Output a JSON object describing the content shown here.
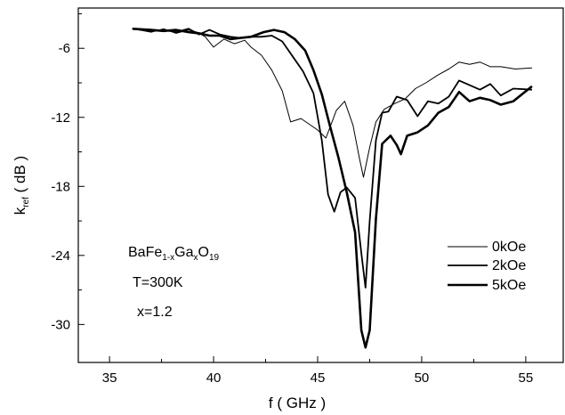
{
  "chart_data": {
    "type": "line",
    "title": "",
    "xlabel": "f ( GHz )",
    "ylabel": {
      "main": "k",
      "sub": "ref",
      "rest": " ( dB )"
    },
    "xlim": [
      33.5,
      56.8
    ],
    "ylim": [
      -33.3,
      -2.5
    ],
    "xticks": [
      35,
      40,
      45,
      50,
      55
    ],
    "yticks": [
      -6,
      -12,
      -18,
      -24,
      -30
    ],
    "grid": false,
    "legend_position": "right",
    "annotation": {
      "formula": [
        {
          "t": "BaFe",
          "sub": false
        },
        {
          "t": "1-x",
          "sub": true
        },
        {
          "t": "Ga",
          "sub": false
        },
        {
          "t": "x",
          "sub": true
        },
        {
          "t": "O",
          "sub": false
        },
        {
          "t": "19",
          "sub": true
        }
      ],
      "temperature": "T=300K",
      "x_value": "x=1.2"
    },
    "series": [
      {
        "name": "0kOe",
        "line_width": 1,
        "points": [
          [
            36.1,
            -4.3
          ],
          [
            37,
            -4.6
          ],
          [
            37.6,
            -4.3
          ],
          [
            38.2,
            -4.7
          ],
          [
            38.8,
            -4.4
          ],
          [
            39.2,
            -4.6
          ],
          [
            39.6,
            -5
          ],
          [
            40,
            -5.9
          ],
          [
            40.5,
            -5.2
          ],
          [
            41,
            -5.6
          ],
          [
            41.5,
            -5.3
          ],
          [
            41.8,
            -5.9
          ],
          [
            42.3,
            -6.6
          ],
          [
            42.8,
            -7.9
          ],
          [
            43.3,
            -9.7
          ],
          [
            43.7,
            -12.4
          ],
          [
            44.2,
            -12.1
          ],
          [
            44.6,
            -12.6
          ],
          [
            45,
            -13.1
          ],
          [
            45.4,
            -13.8
          ],
          [
            45.9,
            -11.4
          ],
          [
            46.3,
            -10.6
          ],
          [
            46.7,
            -12.7
          ],
          [
            47,
            -15.5
          ],
          [
            47.2,
            -17.2
          ],
          [
            47.5,
            -14.6
          ],
          [
            47.8,
            -12.4
          ],
          [
            48.2,
            -11.3
          ],
          [
            48.7,
            -10.8
          ],
          [
            49.2,
            -10.4
          ],
          [
            49.7,
            -9.5
          ],
          [
            50.2,
            -9
          ],
          [
            50.8,
            -8.3
          ],
          [
            51.3,
            -7.8
          ],
          [
            51.8,
            -7.2
          ],
          [
            52.3,
            -7.4
          ],
          [
            52.8,
            -7.2
          ],
          [
            53.3,
            -7.6
          ],
          [
            53.8,
            -7.6
          ],
          [
            54.5,
            -7.8
          ],
          [
            55.3,
            -7.7
          ]
        ]
      },
      {
        "name": "2kOe",
        "line_width": 1.8,
        "points": [
          [
            36.1,
            -4.3
          ],
          [
            37,
            -4.5
          ],
          [
            37.6,
            -4.4
          ],
          [
            38.2,
            -4.6
          ],
          [
            38.8,
            -4.3
          ],
          [
            39.3,
            -4.8
          ],
          [
            39.8,
            -4.4
          ],
          [
            40.3,
            -4.8
          ],
          [
            40.8,
            -5
          ],
          [
            41.3,
            -5.1
          ],
          [
            41.8,
            -5
          ],
          [
            42.3,
            -5
          ],
          [
            42.8,
            -4.9
          ],
          [
            43.3,
            -5.4
          ],
          [
            43.8,
            -6.7
          ],
          [
            44.3,
            -8
          ],
          [
            44.8,
            -9.9
          ],
          [
            45.2,
            -14
          ],
          [
            45.5,
            -18.7
          ],
          [
            45.8,
            -20.2
          ],
          [
            46.1,
            -18.5
          ],
          [
            46.4,
            -18.1
          ],
          [
            46.8,
            -19
          ],
          [
            47.1,
            -23.8
          ],
          [
            47.3,
            -26.8
          ],
          [
            47.5,
            -21
          ],
          [
            47.8,
            -14
          ],
          [
            48.1,
            -11.6
          ],
          [
            48.4,
            -11.5
          ],
          [
            48.8,
            -10.2
          ],
          [
            49.3,
            -10.5
          ],
          [
            49.8,
            -11.9
          ],
          [
            50.3,
            -10.6
          ],
          [
            50.8,
            -10.8
          ],
          [
            51.3,
            -10.2
          ],
          [
            51.8,
            -8.8
          ],
          [
            52.3,
            -9.2
          ],
          [
            52.8,
            -9.6
          ],
          [
            53.3,
            -9.1
          ],
          [
            53.8,
            -10.1
          ],
          [
            54.4,
            -9.5
          ],
          [
            55.3,
            -9.6
          ]
        ]
      },
      {
        "name": "5kOe",
        "line_width": 2.6,
        "points": [
          [
            36.1,
            -4.3
          ],
          [
            37,
            -4.4
          ],
          [
            37.6,
            -4.5
          ],
          [
            38.2,
            -4.4
          ],
          [
            38.8,
            -4.6
          ],
          [
            39.3,
            -4.7
          ],
          [
            39.8,
            -4.9
          ],
          [
            40.3,
            -4.9
          ],
          [
            40.8,
            -5.2
          ],
          [
            41.3,
            -5.1
          ],
          [
            41.8,
            -5
          ],
          [
            42.4,
            -4.6
          ],
          [
            42.9,
            -4.4
          ],
          [
            43.4,
            -4.6
          ],
          [
            43.9,
            -5.2
          ],
          [
            44.4,
            -6.2
          ],
          [
            44.8,
            -7.9
          ],
          [
            45.2,
            -10
          ],
          [
            45.6,
            -12.8
          ],
          [
            46,
            -15.5
          ],
          [
            46.4,
            -18.5
          ],
          [
            46.8,
            -22
          ],
          [
            47.1,
            -30.5
          ],
          [
            47.3,
            -32
          ],
          [
            47.5,
            -30.5
          ],
          [
            47.8,
            -20.8
          ],
          [
            48.1,
            -14.3
          ],
          [
            48.5,
            -13.6
          ],
          [
            48.8,
            -14.4
          ],
          [
            49,
            -15.2
          ],
          [
            49.3,
            -13.6
          ],
          [
            49.8,
            -13.3
          ],
          [
            50.3,
            -12.7
          ],
          [
            50.8,
            -11.6
          ],
          [
            51.3,
            -11.1
          ],
          [
            51.8,
            -9.8
          ],
          [
            52.3,
            -10.6
          ],
          [
            52.8,
            -10.3
          ],
          [
            53.3,
            -10.5
          ],
          [
            53.8,
            -10.9
          ],
          [
            54.4,
            -10.6
          ],
          [
            55.3,
            -9.3
          ]
        ]
      }
    ]
  }
}
